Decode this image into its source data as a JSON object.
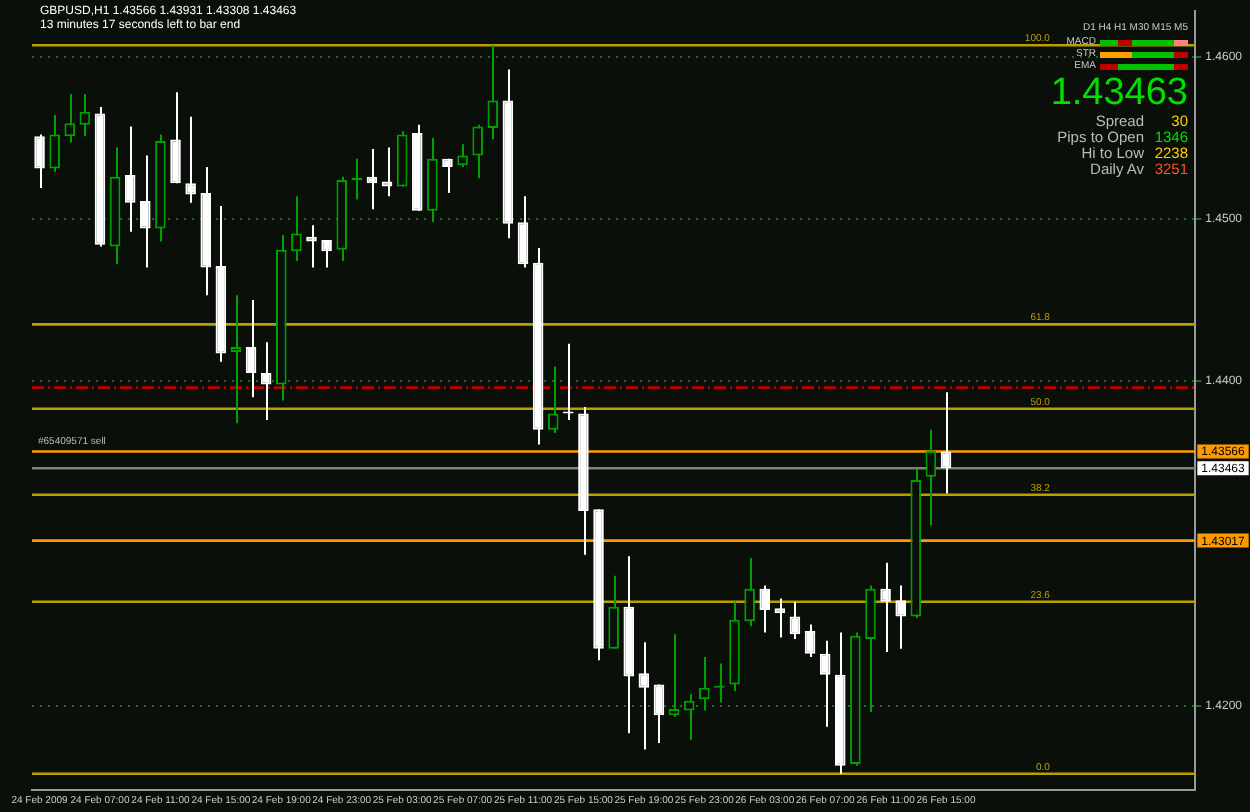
{
  "chart_data": {
    "type": "candlestick",
    "title": "GBPUSD,H1  1.43566 1.43931 1.43308 1.43463",
    "subtitle": "13 minutes 17 seconds left to bar end",
    "categories": [
      "24 Feb 2009",
      null,
      null,
      null,
      "24 Feb 07:00",
      null,
      null,
      null,
      "24 Feb 11:00",
      null,
      null,
      null,
      "24 Feb 15:00",
      null,
      null,
      null,
      "24 Feb 19:00",
      null,
      null,
      null,
      "24 Feb 23:00",
      null,
      null,
      null,
      "25 Feb 03:00",
      null,
      null,
      null,
      "25 Feb 07:00",
      null,
      null,
      null,
      "25 Feb 11:00",
      null,
      null,
      null,
      "25 Feb 15:00",
      null,
      null,
      null,
      "25 Feb 19:00",
      null,
      null,
      null,
      "25 Feb 23:00",
      null,
      null,
      null,
      "26 Feb 03:00",
      null,
      null,
      null,
      "26 Feb 07:00",
      null,
      null,
      null,
      "26 Feb 11:00",
      null,
      null,
      null,
      "26 Feb 15:00",
      null,
      null,
      null,
      null,
      null,
      null,
      null,
      null,
      null,
      null,
      null,
      null,
      null,
      null,
      null,
      null
    ],
    "ohlc": [
      [
        1.4551,
        1.4552,
        1.4519,
        1.4531
      ],
      [
        1.4531,
        1.4564,
        1.4529,
        1.4552
      ],
      [
        1.4551,
        1.4577,
        1.4547,
        1.4559
      ],
      [
        1.4558,
        1.4577,
        1.4551,
        1.4566
      ],
      [
        1.4565,
        1.4569,
        1.4483,
        1.4484
      ],
      [
        1.4483,
        1.4544,
        1.4472,
        1.4526
      ],
      [
        1.4527,
        1.4557,
        1.4492,
        1.451
      ],
      [
        1.4511,
        1.4539,
        1.447,
        1.4494
      ],
      [
        1.4494,
        1.4552,
        1.4486,
        1.4548
      ],
      [
        1.4549,
        1.4578,
        1.4522,
        1.4522
      ],
      [
        1.4522,
        1.4563,
        1.451,
        1.4515
      ],
      [
        1.4516,
        1.4532,
        1.4453,
        1.447
      ],
      [
        1.4471,
        1.4508,
        1.4412,
        1.4417
      ],
      [
        1.4418,
        1.4453,
        1.4374,
        1.4421
      ],
      [
        1.4421,
        1.445,
        1.439,
        1.4405
      ],
      [
        1.4405,
        1.4424,
        1.4376,
        1.4398
      ],
      [
        1.4398,
        1.449,
        1.4388,
        1.4481
      ],
      [
        1.448,
        1.4514,
        1.4474,
        1.4491
      ],
      [
        1.4489,
        1.4496,
        1.447,
        1.4486
      ],
      [
        1.4487,
        1.4487,
        1.447,
        1.448
      ],
      [
        1.4481,
        1.4526,
        1.4474,
        1.4524
      ],
      [
        1.4524,
        1.4537,
        1.4512,
        1.4525
      ],
      [
        1.4526,
        1.4543,
        1.4506,
        1.4522
      ],
      [
        1.4523,
        1.4544,
        1.4514,
        1.452
      ],
      [
        1.452,
        1.4554,
        1.452,
        1.4552
      ],
      [
        1.4553,
        1.4558,
        1.4505,
        1.4505
      ],
      [
        1.4505,
        1.455,
        1.4498,
        1.4537
      ],
      [
        1.4537,
        1.4537,
        1.4516,
        1.4532
      ],
      [
        1.4533,
        1.4546,
        1.4532,
        1.4539
      ],
      [
        1.4539,
        1.4558,
        1.4525,
        1.4557
      ],
      [
        1.4556,
        1.4607,
        1.4549,
        1.4573
      ],
      [
        1.4573,
        1.4592,
        1.4488,
        1.4497
      ],
      [
        1.4498,
        1.4514,
        1.447,
        1.4472
      ],
      [
        1.4473,
        1.4482,
        1.4361,
        1.437
      ],
      [
        1.437,
        1.4409,
        1.4368,
        1.438
      ],
      [
        1.4381,
        1.4423,
        1.4376,
        1.438
      ],
      [
        1.438,
        1.4384,
        1.4293,
        1.432
      ],
      [
        1.4321,
        1.4321,
        1.4228,
        1.4235
      ],
      [
        1.4235,
        1.428,
        1.4235,
        1.4261
      ],
      [
        1.4261,
        1.4292,
        1.4183,
        1.4218
      ],
      [
        1.422,
        1.4239,
        1.4173,
        1.4211
      ],
      [
        1.4213,
        1.4213,
        1.4177,
        1.4194
      ],
      [
        1.4194,
        1.4244,
        1.4193,
        1.4198
      ],
      [
        1.4197,
        1.4207,
        1.4179,
        1.4203
      ],
      [
        1.4204,
        1.423,
        1.4197,
        1.4211
      ],
      [
        1.4211,
        1.4226,
        1.4202,
        1.4212
      ],
      [
        1.4213,
        1.4264,
        1.4209,
        1.4253
      ],
      [
        1.4252,
        1.4291,
        1.4249,
        1.4272
      ],
      [
        1.4272,
        1.4274,
        1.4245,
        1.4259
      ],
      [
        1.426,
        1.4266,
        1.4242,
        1.4257
      ],
      [
        1.4255,
        1.4264,
        1.4241,
        1.4244
      ],
      [
        1.4246,
        1.425,
        1.423,
        1.4232
      ],
      [
        1.4232,
        1.424,
        1.4187,
        1.4219
      ],
      [
        1.4219,
        1.4245,
        1.4158,
        1.4163
      ],
      [
        1.4164,
        1.4245,
        1.4163,
        1.4243
      ],
      [
        1.4241,
        1.4274,
        1.4196,
        1.4272
      ],
      [
        1.4272,
        1.4288,
        1.4233,
        1.4264
      ],
      [
        1.4265,
        1.4274,
        1.4235,
        1.4255
      ],
      [
        1.4255,
        1.4346,
        1.4254,
        1.4339
      ],
      [
        1.4341,
        1.437,
        1.4311,
        1.4357
      ],
      [
        1.43566,
        1.43931,
        1.43308,
        1.43463
      ],
      null,
      null,
      null,
      null,
      null,
      null,
      null,
      null,
      null,
      null,
      null,
      null,
      null,
      null,
      null,
      null
    ],
    "colors": [
      "#ffffff",
      "#00a000",
      "#00a000",
      "#00a000",
      "#ffffff",
      "#00a000",
      "#ffffff",
      "#ffffff",
      "#00a000",
      "#ffffff",
      "#ffffff",
      "#ffffff",
      "#ffffff",
      "#00a000",
      "#ffffff",
      "#ffffff",
      "#00a000",
      "#00a000",
      "#ffffff",
      "#ffffff",
      "#00a000",
      "#00a000",
      "#ffffff",
      "#ffffff",
      "#00a000",
      "#ffffff",
      "#00a000",
      "#ffffff",
      "#00a000",
      "#00a000",
      "#00a000",
      "#ffffff",
      "#ffffff",
      "#ffffff",
      "#00a000",
      "#ffffff",
      "#ffffff",
      "#ffffff",
      "#00a000",
      "#ffffff",
      "#ffffff",
      "#ffffff",
      "#00a000",
      "#00a000",
      "#00a000",
      "#00a000",
      "#00a000",
      "#00a000",
      "#ffffff",
      "#ffffff",
      "#ffffff",
      "#ffffff",
      "#ffffff",
      "#ffffff",
      "#00a000",
      "#00a000",
      "#ffffff",
      "#ffffff",
      "#00a000",
      "#00a000",
      "#ffffff",
      null,
      null,
      null,
      null,
      null,
      null,
      null,
      null,
      null,
      null,
      null,
      null,
      null,
      null,
      null,
      null
    ],
    "ylim": [
      1.4148,
      1.4628
    ],
    "yticks": [
      {
        "value": 1.42,
        "label": "1.4200"
      },
      {
        "value": 1.44,
        "label": "1.4400"
      },
      {
        "value": 1.45,
        "label": "1.4500"
      },
      {
        "value": 1.46,
        "label": "1.4600"
      }
    ],
    "grid": "y",
    "ref_lines": [
      {
        "axis": "y",
        "value": 1.4607,
        "color": "#b8a000"
      },
      {
        "axis": "y",
        "value": 1.4435,
        "color": "#b8a000"
      },
      {
        "axis": "y",
        "value": 1.4383,
        "color": "#b8a000"
      },
      {
        "axis": "y",
        "value": 1.433,
        "color": "#b8a000"
      },
      {
        "axis": "y",
        "value": 1.4264,
        "color": "#b8a000"
      },
      {
        "axis": "y",
        "value": 1.4158,
        "color": "#b8a000"
      },
      {
        "axis": "y",
        "value": 1.4396,
        "color": "#c00000",
        "line_style": "dashed"
      },
      {
        "axis": "y",
        "value": 1.43566,
        "label": "1.43566",
        "color": "#ff9900"
      },
      {
        "axis": "y",
        "value": 1.43017,
        "label": "1.43017",
        "color": "#ff9900"
      },
      {
        "axis": "y",
        "value": 1.43463,
        "label": "1.43463",
        "color": "#808080"
      }
    ],
    "annotations": [
      "D1 H4 H1 M30 M15 M5",
      "MACD",
      "STR",
      "EMA",
      "1.43463",
      "Spread",
      "30",
      "Pips to Open",
      "1346",
      "Hi to Low",
      "2238",
      "Daily Av",
      "3251",
      "#65409571 sell",
      {
        "text": "100.0",
        "y": 1.4607
      },
      {
        "text": "61.8",
        "y": 1.4435
      },
      {
        "text": "50.0",
        "y": 1.4383
      },
      {
        "text": "38.2",
        "y": 1.433
      },
      {
        "text": "23.6",
        "y": 1.4264
      },
      {
        "text": "0.0",
        "y": 1.4158
      }
    ]
  }
}
